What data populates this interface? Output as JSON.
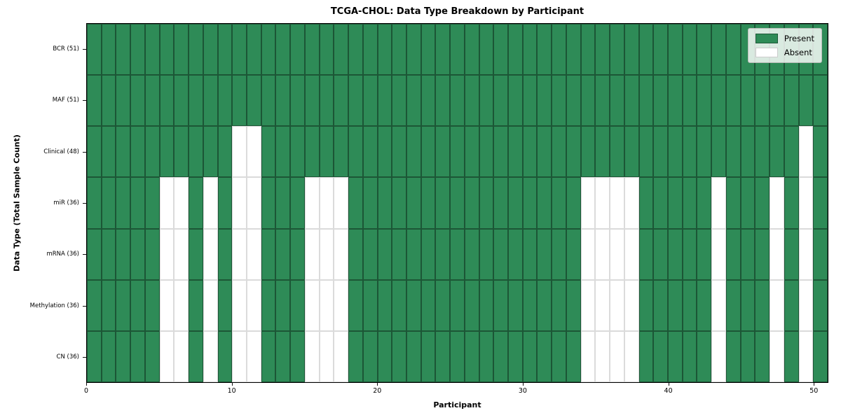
{
  "chart_data": {
    "type": "heatmap",
    "title": "TCGA-CHOL: Data Type Breakdown by Participant",
    "xlabel": "Participant",
    "ylabel": "Data Type (Total Sample Count)",
    "n_participants": 51,
    "x_range": [
      0,
      51
    ],
    "x_ticks": [
      0,
      10,
      20,
      30,
      40,
      50
    ],
    "grid": "cell-borders",
    "legend_position": "upper-right",
    "colors": {
      "present": "#2e8b57",
      "absent": "#ffffff"
    },
    "legend": [
      {
        "label": "Present",
        "state": "present"
      },
      {
        "label": "Absent",
        "state": "absent"
      }
    ],
    "rows": [
      {
        "label": "BCR (51)",
        "present_count": 51,
        "absent_participants": []
      },
      {
        "label": "MAF (51)",
        "present_count": 51,
        "absent_participants": []
      },
      {
        "label": "Clinical (48)",
        "present_count": 48,
        "absent_participants": [
          10,
          11,
          49
        ]
      },
      {
        "label": "miR (36)",
        "present_count": 36,
        "absent_participants": [
          5,
          6,
          8,
          10,
          11,
          15,
          16,
          17,
          34,
          35,
          36,
          37,
          43,
          47,
          49
        ]
      },
      {
        "label": "mRNA (36)",
        "present_count": 36,
        "absent_participants": [
          5,
          6,
          8,
          10,
          11,
          15,
          16,
          17,
          34,
          35,
          36,
          37,
          43,
          47,
          49
        ]
      },
      {
        "label": "Methylation (36)",
        "present_count": 36,
        "absent_participants": [
          5,
          6,
          8,
          10,
          11,
          15,
          16,
          17,
          34,
          35,
          36,
          37,
          43,
          47,
          49
        ]
      },
      {
        "label": "CN (36)",
        "present_count": 36,
        "absent_participants": [
          5,
          6,
          8,
          10,
          11,
          15,
          16,
          17,
          34,
          35,
          36,
          37,
          43,
          47,
          49
        ]
      }
    ]
  }
}
